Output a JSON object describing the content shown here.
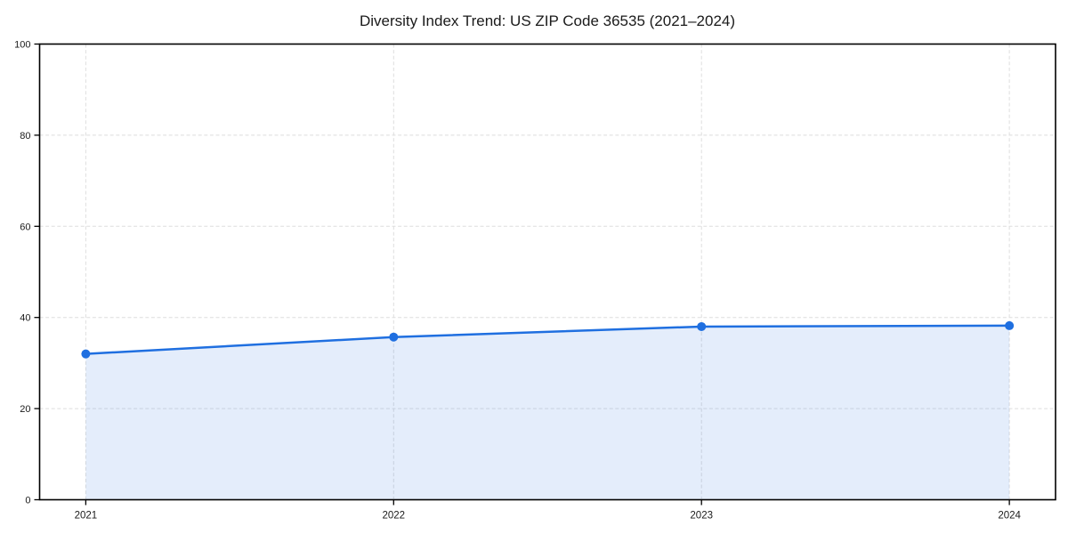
{
  "chart_data": {
    "type": "area",
    "title": "Diversity Index Trend: US ZIP Code 36535 (2021–2024)",
    "categories": [
      "2021",
      "2022",
      "2023",
      "2024"
    ],
    "x": [
      2021,
      2022,
      2023,
      2024
    ],
    "series": [
      {
        "name": "Diversity Index",
        "values": [
          32,
          35.7,
          38,
          38.2
        ]
      }
    ],
    "xlabel": "",
    "ylabel": "",
    "ylim": [
      0,
      100
    ],
    "yticks": [
      0,
      20,
      40,
      60,
      80,
      100
    ],
    "ytick_labels": [
      "0",
      "20",
      "40",
      "60",
      "80",
      "100"
    ],
    "x_margin_frac": 0.05,
    "grid": {
      "visible": true,
      "style": "dashed"
    },
    "legend": "none",
    "marker": "circle",
    "colors": {
      "line": "#1f6fe0",
      "marker": "#1f6fe0",
      "fill": "#1f6fe0",
      "fill_opacity": 0.12,
      "grid": "#dedede",
      "axis": "#000000",
      "tick_text": "#1a1a1a",
      "title_text": "#1a1a1a",
      "background": "#ffffff"
    }
  }
}
